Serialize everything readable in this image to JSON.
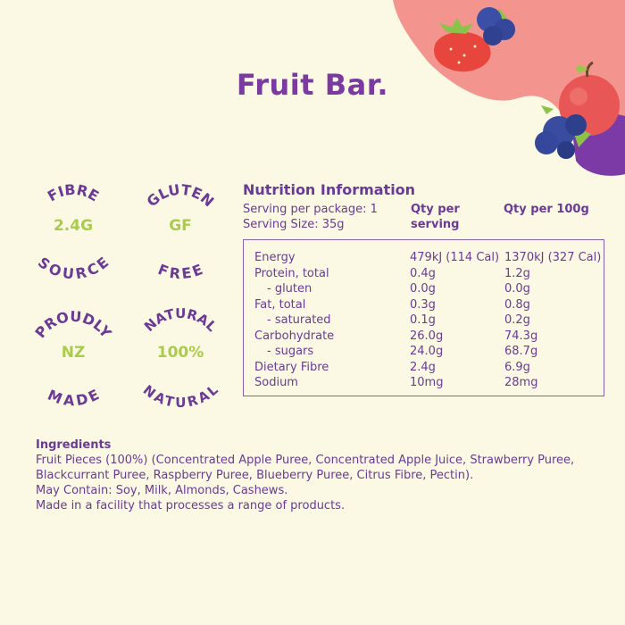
{
  "title": "Fruit Bar.",
  "badges": [
    {
      "top": "FIBRE",
      "center": "2.4G",
      "bottom": "SOURCE"
    },
    {
      "top": "GLUTEN",
      "center": "GF",
      "bottom": "FREE"
    },
    {
      "top": "PROUDLY",
      "center": "NZ",
      "bottom": "MADE"
    },
    {
      "top": "NATURAL",
      "center": "100%",
      "bottom": "NATURAL"
    }
  ],
  "nutrition": {
    "heading": "Nutrition Information",
    "servings_per_package": "Serving per package: 1",
    "serving_size": "Serving Size: 35g",
    "col_serving": "Qty per serving",
    "col_100g": "Qty per 100g",
    "rows": [
      {
        "label": "Energy",
        "per_serving": "479kJ (114 Cal)",
        "per_100g": "1370kJ (327 Cal)"
      },
      {
        "label": "Protein, total",
        "per_serving": "0.4g",
        "per_100g": "1.2g"
      },
      {
        "label": "- gluten",
        "per_serving": "0.0g",
        "per_100g": "0.0g"
      },
      {
        "label": "Fat, total",
        "per_serving": "0.3g",
        "per_100g": "0.8g"
      },
      {
        "label": "- saturated",
        "per_serving": "0.1g",
        "per_100g": "0.2g"
      },
      {
        "label": "Carbohydrate",
        "per_serving": "26.0g",
        "per_100g": "74.3g"
      },
      {
        "label": "- sugars",
        "per_serving": "24.0g",
        "per_100g": "68.7g"
      },
      {
        "label": "Dietary Fibre",
        "per_serving": "2.4g",
        "per_100g": "6.9g"
      },
      {
        "label": "Sodium",
        "per_serving": "10mg",
        "per_100g": "28mg"
      }
    ]
  },
  "ingredients": {
    "heading": "Ingredients",
    "list": "Fruit Pieces (100%) (Concentrated Apple Puree, Concentrated Apple Juice, Strawberry Puree, Blackcurrant Puree, Raspberry Puree, Blueberry Puree, Citrus Fibre, Pectin).",
    "may_contain": "May Contain: Soy, Milk, Almonds, Cashews.",
    "facility": "Made in a facility that processes a range of products."
  },
  "colors": {
    "background": "#fbf8e3",
    "purple": "#6b3a96",
    "green": "#a9cc4a",
    "pink": "#f28d8a",
    "plum": "#7a3aa0"
  }
}
